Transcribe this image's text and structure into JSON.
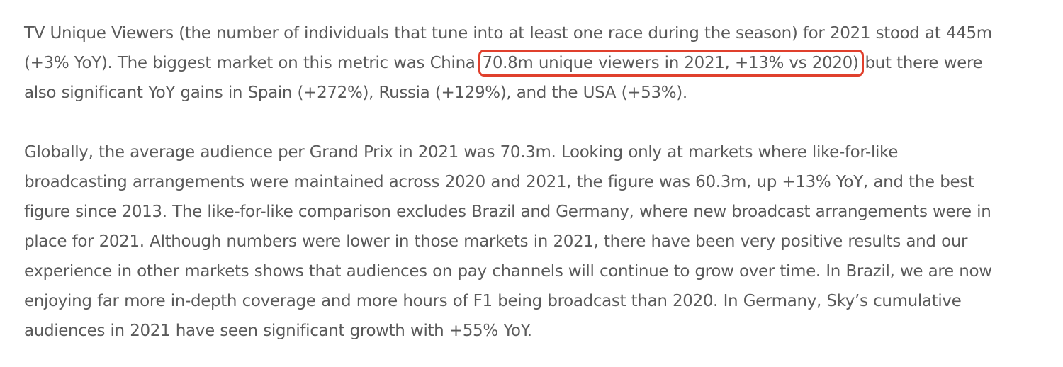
{
  "paragraph1": {
    "line1": "TV Unique Viewers (the number of individuals that tune into at least one race during the season) for 2021 stood at 445m",
    "line2_before": "(+3% YoY). The biggest market on this metric was China",
    "highlight": "70.8m unique viewers in 2021, +13% vs 2020)",
    "line2_after": "but there were",
    "line3": "also significant YoY gains in Spain (+272%), Russia (+129%), and the USA (+53%)."
  },
  "paragraph2": {
    "lines": [
      "Globally, the average audience per Grand Prix in 2021 was 70.3m. Looking only at markets where like-for-like",
      "broadcasting arrangements were maintained across 2020 and 2021, the figure was 60.3m, up +13% YoY, and the best",
      "figure since 2013. The like-for-like comparison excludes Brazil and Germany, where new broadcast arrangements were in",
      "place for 2021. Although numbers were lower in those markets in 2021, there have been very positive results and our",
      "experience in other markets shows that audiences on pay channels will continue to grow over time. In Brazil, we are now",
      "enjoying far more in-depth coverage and more hours of F1 being broadcast than 2020. In Germany, Sky’s cumulative",
      "audiences in 2021 have seen significant growth with +55% YoY."
    ]
  },
  "colors": {
    "text": "#5a5a5a",
    "highlight_border": "#e0402d",
    "background": "#ffffff"
  }
}
